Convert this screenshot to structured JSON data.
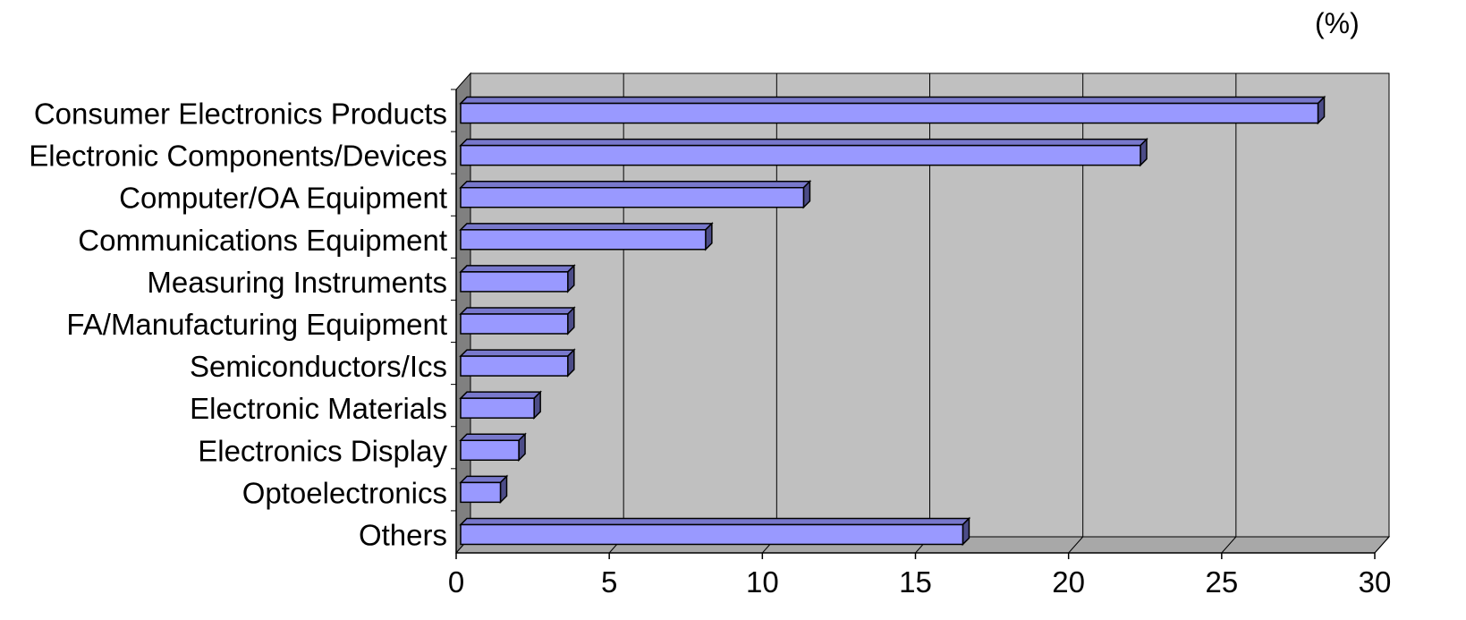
{
  "chart_data": {
    "type": "bar",
    "orientation": "horizontal",
    "unit": "(%)",
    "title": "",
    "xlabel": "",
    "ylabel": "",
    "categories": [
      "Consumer Electronics Products",
      "Electronic Components/Devices",
      "Computer/OA Equipment",
      "Communications Equipment",
      "Measuring Instruments",
      "FA/Manufacturing Equipment",
      "Semiconductors/Ics",
      "Electronic Materials",
      "Electronics Display",
      "Optoelectronics",
      "Others"
    ],
    "values": [
      28.0,
      22.2,
      11.2,
      8.0,
      3.5,
      3.5,
      3.5,
      2.4,
      1.9,
      1.3,
      16.4
    ],
    "xlim": [
      0,
      30
    ],
    "ticks": [
      0,
      5,
      10,
      15,
      20,
      25,
      30
    ],
    "grid": true,
    "legend": "none",
    "colors": {
      "bar_front": "#9999ff",
      "bar_top": "#7878cc",
      "bar_side": "#4c4c88",
      "plot_back": "#c0c0c0",
      "plot_wall": "#808080",
      "plot_floor": "#a8a8a8"
    }
  }
}
